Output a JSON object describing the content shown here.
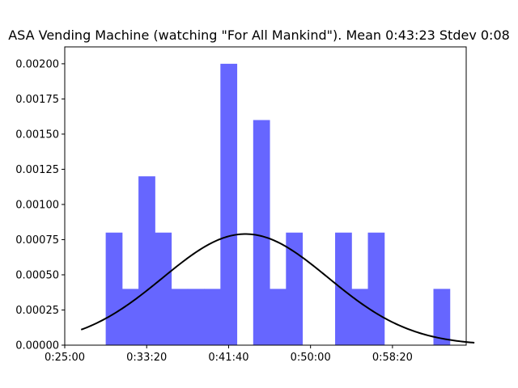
{
  "chart_data": {
    "type": "bar",
    "title": "ASA Vending Machine (watching \"For All Mankind\"). Mean 0:43:23 Stdev 0:08",
    "xlabel": "",
    "ylabel": "",
    "x_unit": "seconds",
    "xlim": [
      1500,
      3950
    ],
    "ylim": [
      0,
      0.00212
    ],
    "x_ticks": [
      {
        "value": 1500,
        "label": "0:25:00"
      },
      {
        "value": 2000,
        "label": "0:33:20"
      },
      {
        "value": 2500,
        "label": "0:41:40"
      },
      {
        "value": 3000,
        "label": "0:50:00"
      },
      {
        "value": 3500,
        "label": "0:58:20"
      }
    ],
    "y_ticks": [
      {
        "value": 0,
        "label": "0.00000"
      },
      {
        "value": 0.00025,
        "label": "0.00025"
      },
      {
        "value": 0.0005,
        "label": "0.00050"
      },
      {
        "value": 0.00075,
        "label": "0.00075"
      },
      {
        "value": 0.001,
        "label": "0.00100"
      },
      {
        "value": 0.00125,
        "label": "0.00125"
      },
      {
        "value": 0.0015,
        "label": "0.00150"
      },
      {
        "value": 0.00175,
        "label": "0.00175"
      },
      {
        "value": 0.002,
        "label": "0.00200"
      }
    ],
    "bins": [
      {
        "x0": 1750,
        "x1": 1850,
        "value": 0.0008
      },
      {
        "x0": 1850,
        "x1": 1950,
        "value": 0.0004
      },
      {
        "x0": 1950,
        "x1": 2050,
        "value": 0.0012
      },
      {
        "x0": 2050,
        "x1": 2150,
        "value": 0.0008
      },
      {
        "x0": 2150,
        "x1": 2250,
        "value": 0.0004
      },
      {
        "x0": 2250,
        "x1": 2350,
        "value": 0.0004
      },
      {
        "x0": 2350,
        "x1": 2450,
        "value": 0.0004
      },
      {
        "x0": 2450,
        "x1": 2550,
        "value": 0.002
      },
      {
        "x0": 2650,
        "x1": 2750,
        "value": 0.0016
      },
      {
        "x0": 2750,
        "x1": 2850,
        "value": 0.0004
      },
      {
        "x0": 2850,
        "x1": 2950,
        "value": 0.0008
      },
      {
        "x0": 3150,
        "x1": 3250,
        "value": 0.0008
      },
      {
        "x0": 3250,
        "x1": 3350,
        "value": 0.0004
      },
      {
        "x0": 3350,
        "x1": 3450,
        "value": 0.0008
      },
      {
        "x0": 3750,
        "x1": 3850,
        "value": 0.0004
      }
    ],
    "normal_curve": {
      "mean": 2603,
      "stdev": 505,
      "x_start": 1600,
      "x_end": 4000
    },
    "colors": {
      "bars": "#6666ff",
      "curve": "#000000"
    },
    "grid": false
  }
}
